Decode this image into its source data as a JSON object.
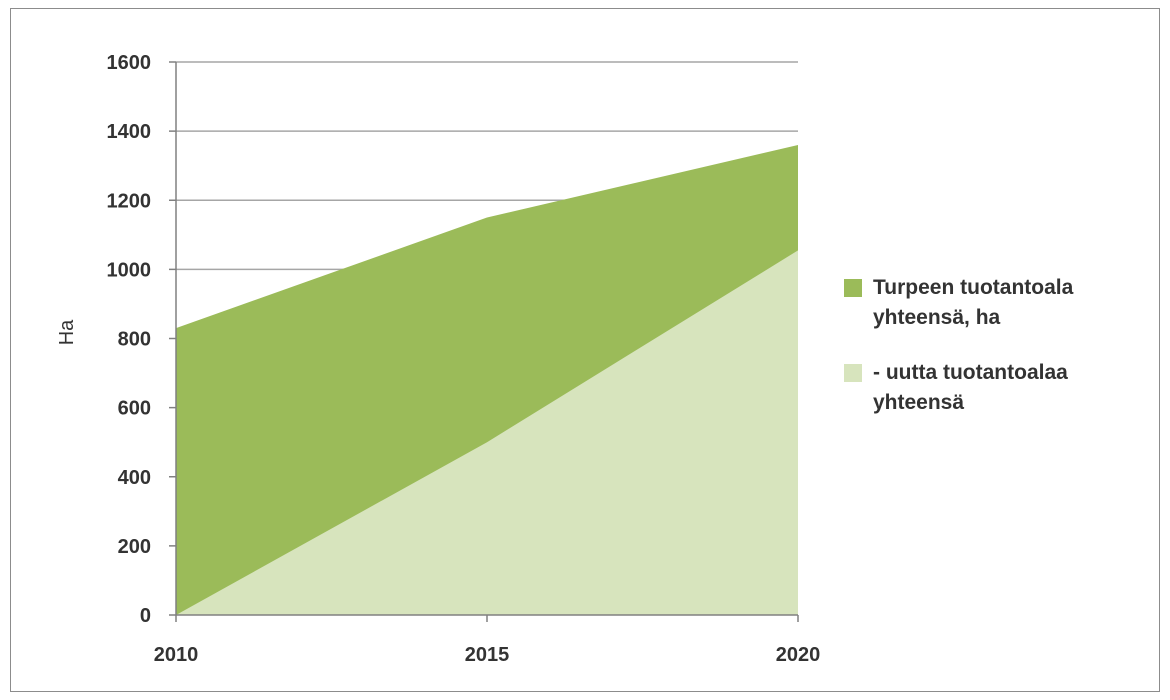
{
  "chart_data": {
    "type": "area",
    "title": "",
    "xlabel": "",
    "ylabel": "Ha",
    "x": [
      2010,
      2015,
      2020
    ],
    "x_ticks": [
      "2010",
      "2015",
      "2020"
    ],
    "y_ticks": [
      "0",
      "200",
      "400",
      "600",
      "800",
      "1000",
      "1200",
      "1400",
      "1600"
    ],
    "ylim": [
      0,
      1600
    ],
    "grid": true,
    "legend_position": "right",
    "series": [
      {
        "name": "Turpeen tuotantoala yhteensä, ha",
        "legend_lines": [
          "Turpeen tuotantoala",
          "yhteensä, ha"
        ],
        "values": [
          830,
          1150,
          1360
        ],
        "color": "#9bbb59"
      },
      {
        "name": " - uutta tuotantoalaa yhteensä",
        "legend_lines": [
          " - uutta tuotantoalaa",
          "yhteensä"
        ],
        "values": [
          0,
          500,
          1055
        ],
        "color": "#d7e4bd"
      }
    ]
  }
}
